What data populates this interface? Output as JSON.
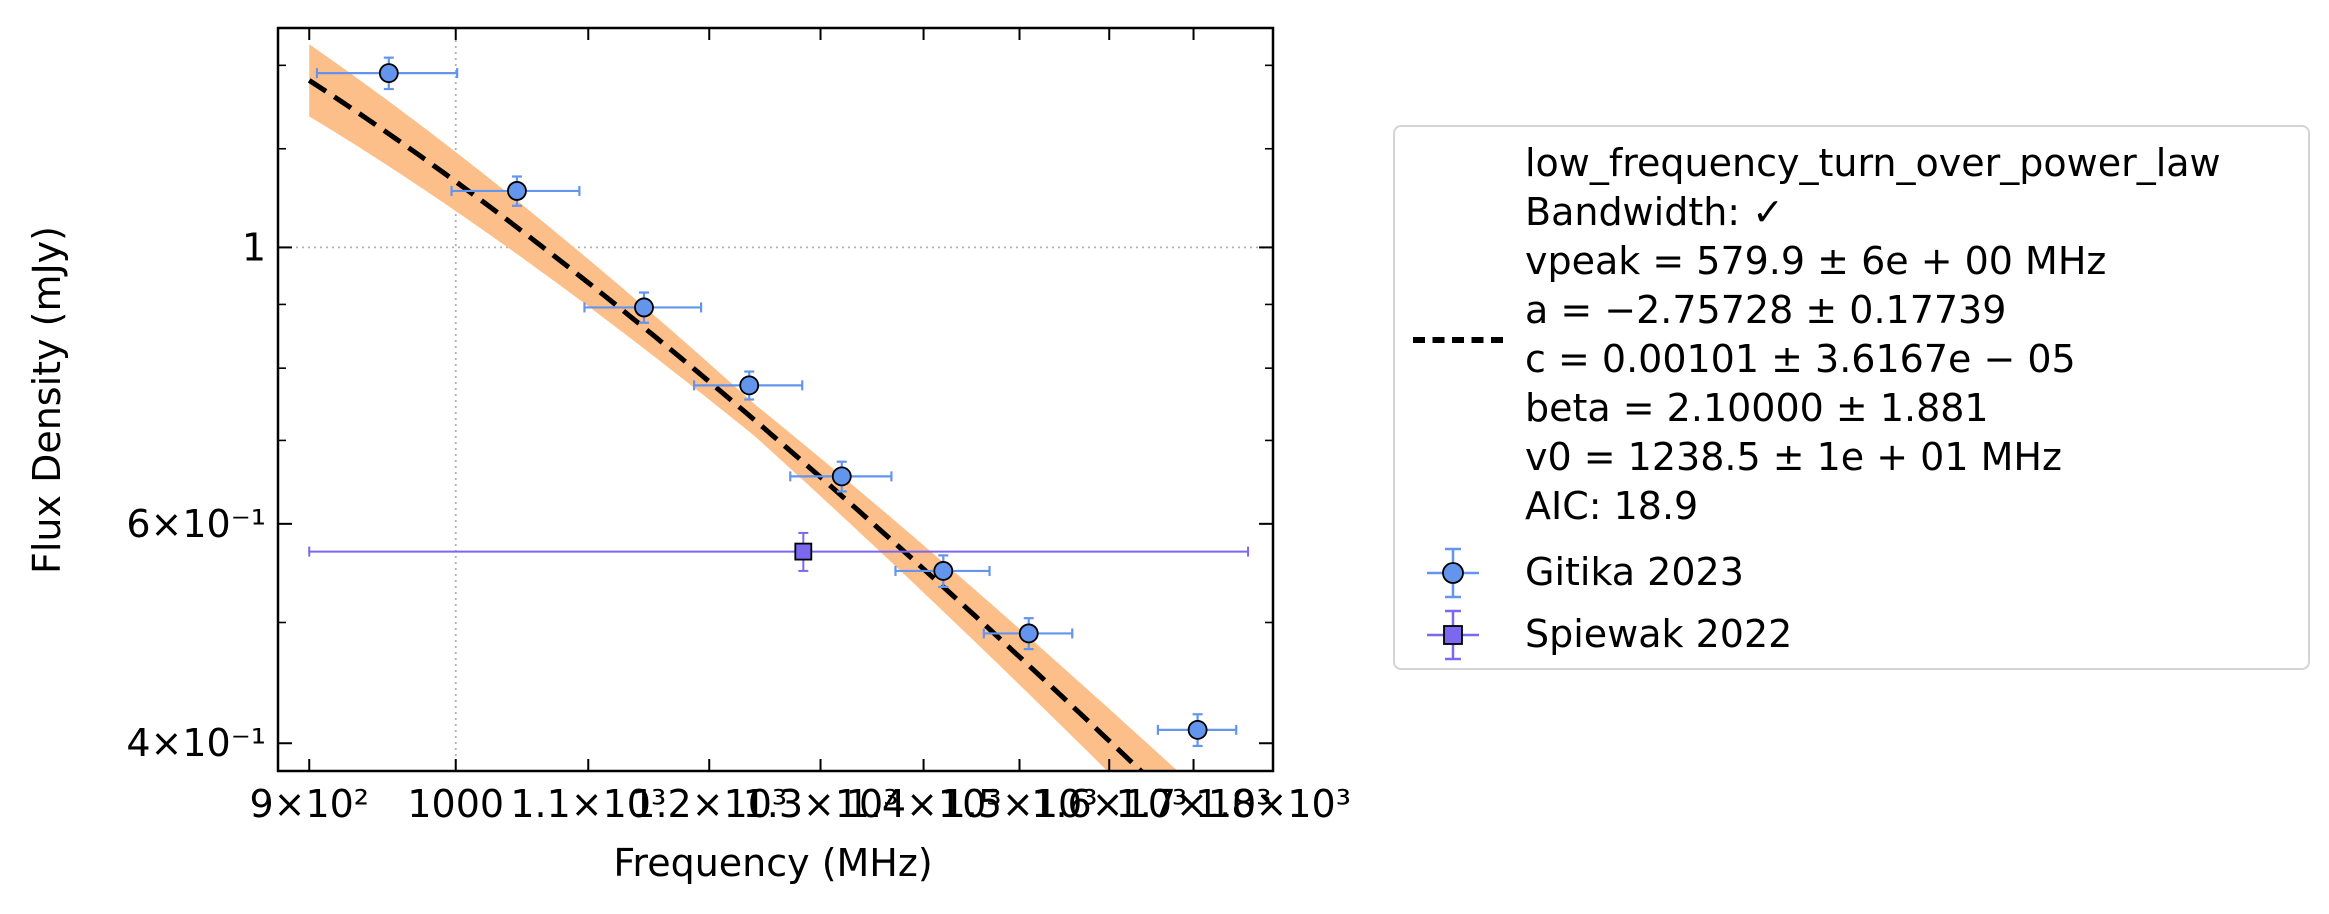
{
  "chart_data": {
    "type": "scatter",
    "xlabel": "Frequency (MHz)",
    "ylabel": "Flux Density (mJy)",
    "xscale": "log",
    "yscale": "log",
    "xlim": [
      880,
      1800
    ],
    "ylim": [
      0.38,
      1.5
    ],
    "x_ticks": [
      {
        "value": 900,
        "label": "9×10²"
      },
      {
        "value": 1000,
        "label": "1000"
      },
      {
        "value": 1100,
        "label": "1.1×10³"
      },
      {
        "value": 1200,
        "label": "1.2×10³"
      },
      {
        "value": 1300,
        "label": "1.3×10³"
      },
      {
        "value": 1400,
        "label": "1.4×10³"
      },
      {
        "value": 1500,
        "label": "1.5×10³"
      },
      {
        "value": 1600,
        "label": "1.6×10³"
      },
      {
        "value": 1700,
        "label": "1.7×10³"
      },
      {
        "value": 1800,
        "label": "1.8×10³"
      }
    ],
    "y_ticks": [
      {
        "value": 0.4,
        "label": "4×10⁻¹"
      },
      {
        "value": 0.6,
        "label": "6×10⁻¹"
      },
      {
        "value": 1.0,
        "label": "1"
      }
    ],
    "y_minor_ticks": [
      0.5,
      0.7,
      0.8,
      0.9,
      1.2,
      1.4
    ],
    "grid": "dotted major",
    "legend_position": "outside right",
    "series": [
      {
        "name": "Gitika 2023",
        "marker": "circle",
        "color": "#6495ed",
        "points": [
          {
            "x": 953,
            "y": 1.38,
            "xerr": 48,
            "yerr": 0.04
          },
          {
            "x": 1045,
            "y": 1.11,
            "xerr": 48,
            "yerr": 0.03
          },
          {
            "x": 1145,
            "y": 0.895,
            "xerr": 48,
            "yerr": 0.025
          },
          {
            "x": 1235,
            "y": 0.775,
            "xerr": 48,
            "yerr": 0.02
          },
          {
            "x": 1320,
            "y": 0.655,
            "xerr": 48,
            "yerr": 0.018
          },
          {
            "x": 1420,
            "y": 0.55,
            "xerr": 48,
            "yerr": 0.016
          },
          {
            "x": 1510,
            "y": 0.49,
            "xerr": 48,
            "yerr": 0.014
          },
          {
            "x": 1705,
            "y": 0.41,
            "xerr": 48,
            "yerr": 0.012
          }
        ]
      },
      {
        "name": "Spiewak 2022",
        "marker": "square",
        "color": "#7b68ee",
        "points": [
          {
            "x": 1284,
            "y": 0.57,
            "xerr_low": 384,
            "xerr_high": 484,
            "yerr": 0.02
          }
        ]
      }
    ],
    "fit": {
      "model": "low_frequency_turn_over_power_law",
      "vpeak": 579.9,
      "a": -2.75728,
      "c": 0.00101,
      "beta": 2.1,
      "v0": 1238.5,
      "x_range": [
        900,
        1770
      ],
      "band_color": "#fdbf8a",
      "line_style": "dashed",
      "line_color": "#000000"
    }
  },
  "legend": {
    "fit_lines": [
      "low_frequency_turn_over_power_law",
      "Bandwidth: ✓",
      "vpeak = 579.9 ± 6e + 00 MHz",
      "a = −2.75728 ± 0.17739",
      "c = 0.00101 ± 3.6167e − 05",
      "beta = 2.10000 ± 1.881",
      "v0 = 1238.5 ± 1e + 01 MHz",
      "AIC: 18.9"
    ],
    "series_labels": [
      "Gitika 2023",
      "Spiewak 2022"
    ]
  }
}
